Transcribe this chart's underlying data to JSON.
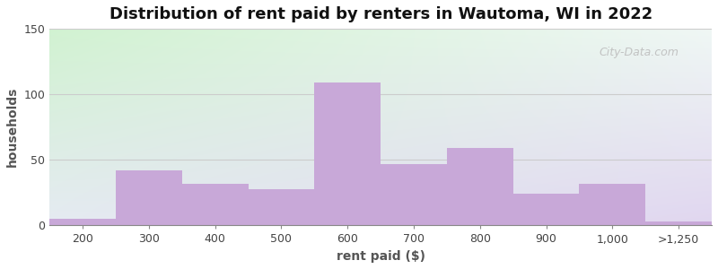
{
  "title": "Distribution of rent paid by renters in Wautoma, WI in 2022",
  "xlabel": "rent paid ($)",
  "ylabel": "households",
  "categories": [
    "200",
    "300",
    "400",
    "500",
    "600",
    "700",
    "800",
    "900",
    "1,000",
    ">1,250"
  ],
  "values": [
    5,
    42,
    32,
    28,
    109,
    47,
    59,
    24,
    32,
    3
  ],
  "bar_color": "#c8a8d8",
  "ylim": [
    0,
    150
  ],
  "yticks": [
    0,
    50,
    100,
    150
  ],
  "title_fontsize": 13,
  "axis_label_fontsize": 10,
  "tick_fontsize": 9,
  "watermark_text": "City-Data.com",
  "fig_width": 8.0,
  "fig_height": 3.0,
  "bg_colors": [
    "#d8eeda",
    "#ffffff",
    "#e8e8f8"
  ],
  "grid_color": "#dddddd"
}
